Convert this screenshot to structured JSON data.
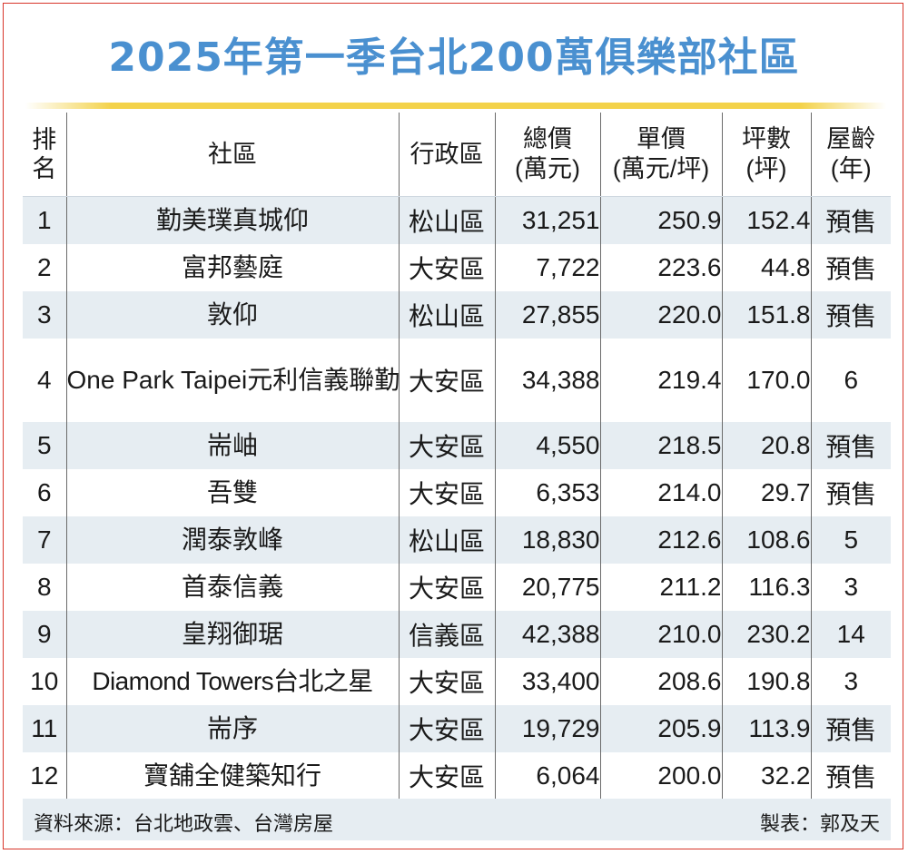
{
  "title": "2025年第一季台北200萬俱樂部社區",
  "headers": {
    "rank": "排名",
    "community": "社區",
    "district": "行政區",
    "total_price": "總價",
    "total_price_unit": "(萬元)",
    "unit_price": "單價",
    "unit_price_unit": "(萬元/坪)",
    "area": "坪數",
    "area_unit": "(坪)",
    "age": "屋齡",
    "age_unit": "(年)"
  },
  "rows": [
    {
      "rank": "1",
      "community": "勤美璞真城仰",
      "district": "松山區",
      "total_price": "31,251",
      "unit_price": "250.9",
      "area": "152.4",
      "age": "預售"
    },
    {
      "rank": "2",
      "community": "富邦藝庭",
      "district": "大安區",
      "total_price": "7,722",
      "unit_price": "223.6",
      "area": "44.8",
      "age": "預售"
    },
    {
      "rank": "3",
      "community": "敦仰",
      "district": "松山區",
      "total_price": "27,855",
      "unit_price": "220.0",
      "area": "151.8",
      "age": "預售"
    },
    {
      "rank": "4",
      "community": "One Park Taipei元利信義聯勤",
      "district": "大安區",
      "total_price": "34,388",
      "unit_price": "219.4",
      "area": "170.0",
      "age": "6"
    },
    {
      "rank": "5",
      "community": "耑岫",
      "district": "大安區",
      "total_price": "4,550",
      "unit_price": "218.5",
      "area": "20.8",
      "age": "預售"
    },
    {
      "rank": "6",
      "community": "吾雙",
      "district": "大安區",
      "total_price": "6,353",
      "unit_price": "214.0",
      "area": "29.7",
      "age": "預售"
    },
    {
      "rank": "7",
      "community": "潤泰敦峰",
      "district": "松山區",
      "total_price": "18,830",
      "unit_price": "212.6",
      "area": "108.6",
      "age": "5"
    },
    {
      "rank": "8",
      "community": "首泰信義",
      "district": "大安區",
      "total_price": "20,775",
      "unit_price": "211.2",
      "area": "116.3",
      "age": "3"
    },
    {
      "rank": "9",
      "community": "皇翔御琚",
      "district": "信義區",
      "total_price": "42,388",
      "unit_price": "210.0",
      "area": "230.2",
      "age": "14"
    },
    {
      "rank": "10",
      "community": "Diamond Towers台北之星",
      "district": "大安區",
      "total_price": "33,400",
      "unit_price": "208.6",
      "area": "190.8",
      "age": "3"
    },
    {
      "rank": "11",
      "community": "耑序",
      "district": "大安區",
      "total_price": "19,729",
      "unit_price": "205.9",
      "area": "113.9",
      "age": "預售"
    },
    {
      "rank": "12",
      "community": "寶舖全健築知行",
      "district": "大安區",
      "total_price": "6,064",
      "unit_price": "200.0",
      "area": "32.2",
      "age": "預售"
    }
  ],
  "footer": {
    "source": "資料來源：台北地政雲、台灣房屋",
    "maker": "製表：郭及天"
  },
  "colors": {
    "title": "#4a90d0",
    "rule": "#f3d24a",
    "row_stripe": "#e6edf2",
    "border": "#d8352a"
  }
}
